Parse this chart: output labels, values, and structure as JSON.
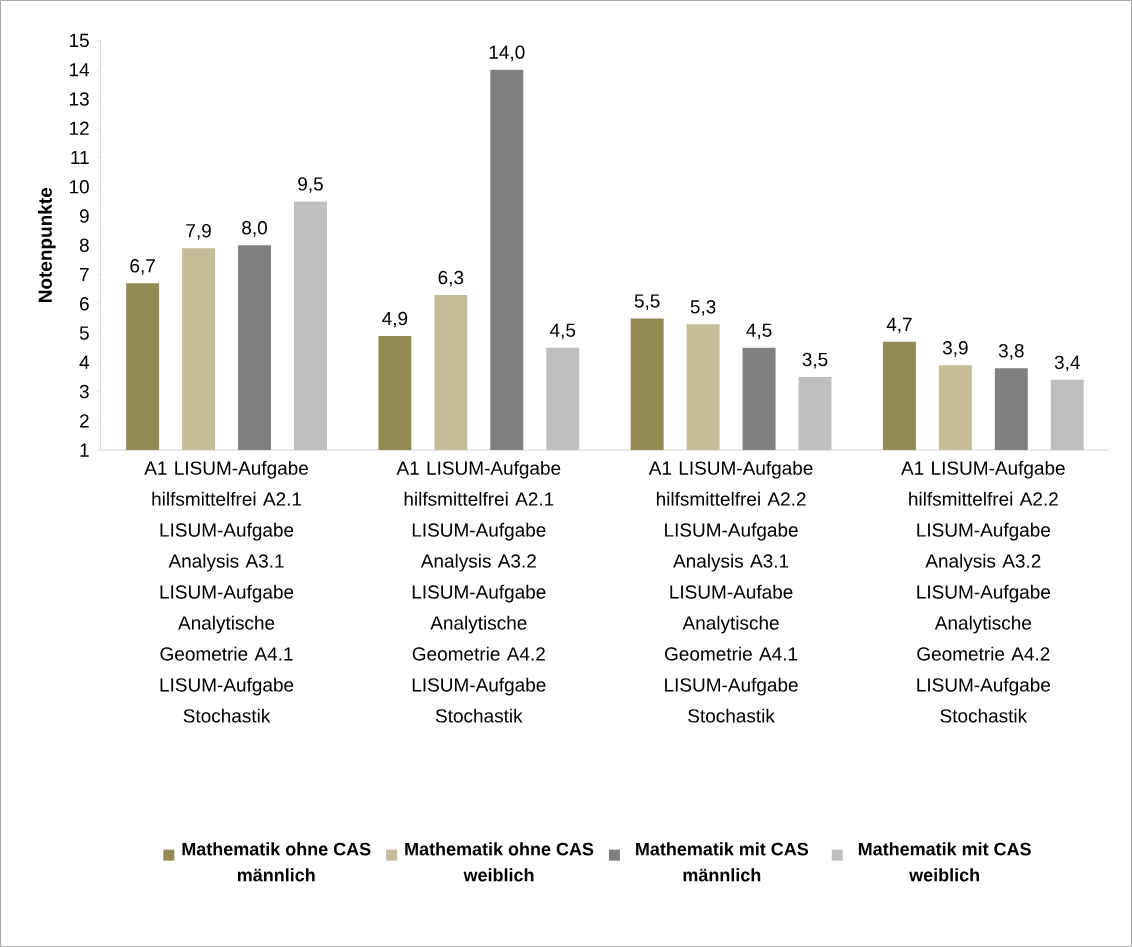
{
  "chart_data": {
    "type": "bar",
    "ylabel": "Notenpunkte",
    "categories": [
      "A1 LISUM-Aufgabe hilfsmittelfrei A2.1 LISUM-Aufgabe Analysis A3.1 LISUM-Aufgabe Analytische Geometrie A4.1 LISUM-Aufgabe Stochastik",
      "A1 LISUM-Aufgabe hilfsmittelfrei A2.1 LISUM-Aufgabe Analysis A3.2 LISUM-Aufgabe Analytische Geometrie A4.2 LISUM-Aufgabe Stochastik",
      "A1 LISUM-Aufgabe hilfsmittelfrei A2.2 LISUM-Aufgabe Analysis A3.1 LISUM-Aufabe Analytische Geometrie A4.1 LISUM-Aufgabe Stochastik",
      "A1 LISUM-Aufgabe hilfsmittelfrei A2.2 LISUM-Aufgabe Analysis A3.2 LISUM-Aufgabe Analytische Geometrie A4.2 LISUM-Aufgabe Stochastik"
    ],
    "series": [
      {
        "name": "Mathematik ohne CAS männlich",
        "color": "#948a54",
        "values": [
          6.7,
          4.9,
          5.5,
          4.7
        ],
        "value_labels": [
          "6,7",
          "4,9",
          "5,5",
          "4,7"
        ]
      },
      {
        "name": "Mathematik ohne CAS weiblich",
        "color": "#c4bd97",
        "values": [
          7.9,
          6.3,
          5.3,
          3.9
        ],
        "value_labels": [
          "7,9",
          "6,3",
          "5,3",
          "3,9"
        ]
      },
      {
        "name": "Mathematik mit CAS männlich",
        "color": "#7f7f7f",
        "values": [
          8.0,
          14.0,
          4.5,
          3.8
        ],
        "value_labels": [
          "8,0",
          "14,0",
          "4,5",
          "3,8"
        ]
      },
      {
        "name": "Mathematik mit CAS weiblich",
        "color": "#bfbfbf",
        "values": [
          9.5,
          4.5,
          3.5,
          3.4
        ],
        "value_labels": [
          "9,5",
          "4,5",
          "3,5",
          "3,4"
        ]
      }
    ],
    "ylim": [
      1,
      15
    ],
    "yticks": [
      1,
      2,
      3,
      4,
      5,
      6,
      7,
      8,
      9,
      10,
      11,
      12,
      13,
      14,
      15
    ],
    "legend": "bottom"
  }
}
